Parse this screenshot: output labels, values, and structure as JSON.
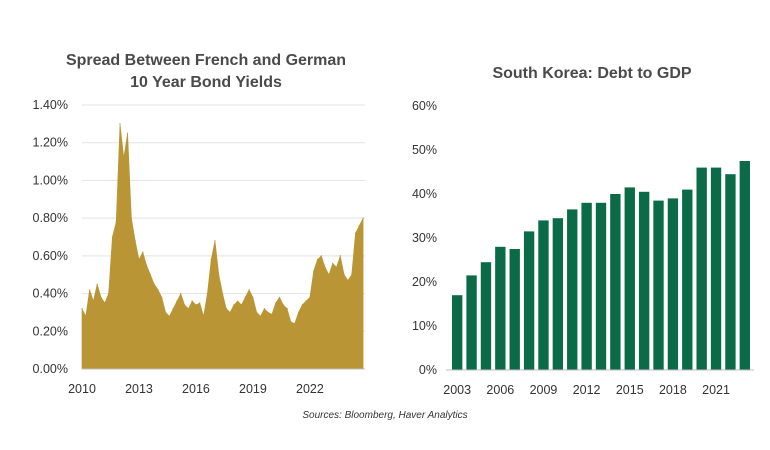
{
  "colors": {
    "area": "#B99535",
    "bar": "#0B6A47",
    "title": "#4a4a4a"
  },
  "source": "Sources: Bloomberg, Haver Analytics",
  "chart_data": [
    {
      "type": "area",
      "title_lines": [
        "Spread Between French and German",
        "10 Year Bond Yields"
      ],
      "xlabel": "",
      "ylabel": "",
      "x_ticks": [
        "2010",
        "2013",
        "2016",
        "2019",
        "2022"
      ],
      "x_tick_values": [
        2010,
        2013,
        2016,
        2019,
        2022
      ],
      "y_ticks": [
        "0.00%",
        "0.20%",
        "0.40%",
        "0.60%",
        "0.80%",
        "1.00%",
        "1.20%",
        "1.40%"
      ],
      "xlim": [
        2010,
        2024.9
      ],
      "ylim": [
        0,
        1.4
      ],
      "grid": true,
      "x": [
        2010.0,
        2010.2,
        2010.4,
        2010.6,
        2010.8,
        2011.0,
        2011.2,
        2011.4,
        2011.6,
        2011.8,
        2012.0,
        2012.2,
        2012.4,
        2012.6,
        2012.8,
        2013.0,
        2013.2,
        2013.4,
        2013.6,
        2013.8,
        2014.0,
        2014.2,
        2014.4,
        2014.6,
        2014.8,
        2015.0,
        2015.2,
        2015.4,
        2015.6,
        2015.8,
        2016.0,
        2016.2,
        2016.4,
        2016.6,
        2016.8,
        2017.0,
        2017.2,
        2017.4,
        2017.6,
        2017.8,
        2018.0,
        2018.2,
        2018.4,
        2018.6,
        2018.8,
        2019.0,
        2019.2,
        2019.4,
        2019.6,
        2019.8,
        2020.0,
        2020.2,
        2020.4,
        2020.6,
        2020.8,
        2021.0,
        2021.2,
        2021.4,
        2021.6,
        2021.8,
        2022.0,
        2022.2,
        2022.4,
        2022.6,
        2022.8,
        2023.0,
        2023.2,
        2023.4,
        2023.6,
        2023.8,
        2024.0,
        2024.2,
        2024.4,
        2024.6,
        2024.8
      ],
      "values": [
        0.32,
        0.28,
        0.42,
        0.36,
        0.45,
        0.38,
        0.35,
        0.4,
        0.7,
        0.78,
        1.3,
        1.12,
        1.25,
        0.8,
        0.68,
        0.58,
        0.62,
        0.55,
        0.5,
        0.45,
        0.42,
        0.38,
        0.3,
        0.28,
        0.32,
        0.36,
        0.4,
        0.34,
        0.32,
        0.36,
        0.34,
        0.35,
        0.28,
        0.4,
        0.58,
        0.68,
        0.5,
        0.4,
        0.32,
        0.3,
        0.34,
        0.36,
        0.34,
        0.38,
        0.42,
        0.38,
        0.3,
        0.28,
        0.32,
        0.3,
        0.29,
        0.35,
        0.38,
        0.34,
        0.32,
        0.25,
        0.24,
        0.3,
        0.34,
        0.36,
        0.38,
        0.52,
        0.58,
        0.6,
        0.54,
        0.5,
        0.56,
        0.54,
        0.6,
        0.5,
        0.47,
        0.5,
        0.72,
        0.76,
        0.8
      ]
    },
    {
      "type": "bar",
      "title": "South Korea: Debt to GDP",
      "xlabel": "",
      "ylabel": "",
      "categories": [
        "2003",
        "2004",
        "2005",
        "2006",
        "2007",
        "2008",
        "2009",
        "2010",
        "2011",
        "2012",
        "2013",
        "2014",
        "2015",
        "2016",
        "2017",
        "2018",
        "2019",
        "2020",
        "2021",
        "2022",
        "2023"
      ],
      "values": [
        17,
        21.5,
        24.5,
        28,
        27.5,
        31.5,
        34,
        34.5,
        36.5,
        38,
        38,
        40,
        41.5,
        40.5,
        38.5,
        39,
        41,
        46,
        46,
        44.5,
        47.5
      ],
      "x_ticks": [
        "2003",
        "2006",
        "2009",
        "2012",
        "2015",
        "2018",
        "2021"
      ],
      "y_ticks": [
        "0%",
        "10%",
        "20%",
        "30%",
        "40%",
        "50%",
        "60%"
      ],
      "ylim": [
        0,
        60
      ],
      "grid": false
    }
  ]
}
